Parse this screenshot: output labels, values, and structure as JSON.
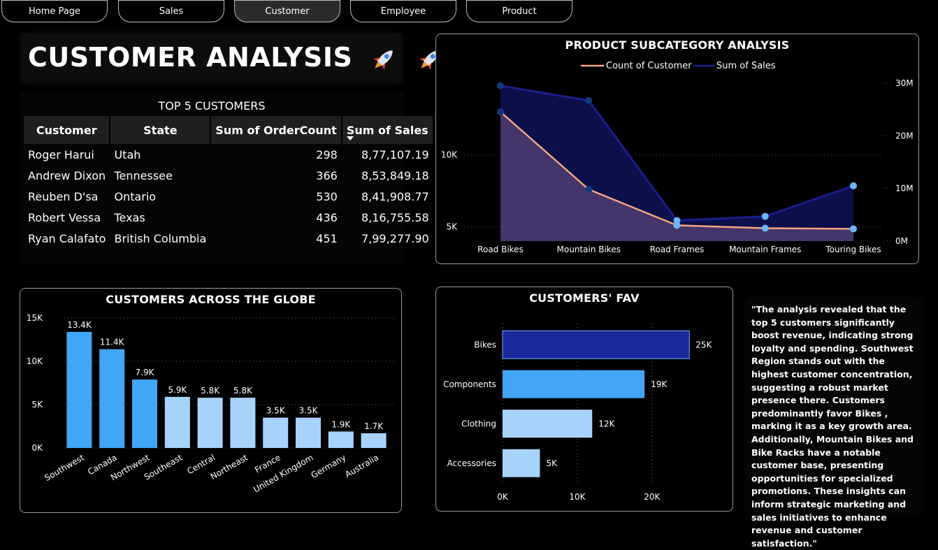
{
  "nav": {
    "items": [
      "Home Page",
      "Sales",
      "Customer",
      "Employee",
      "Product"
    ],
    "active": "Customer"
  },
  "page_title": "CUSTOMER ANALYSIS",
  "top5": {
    "title": "TOP 5 CUSTOMERS",
    "columns": [
      "Customer",
      "State",
      "Sum of OrderCount",
      "Sum of Sales"
    ],
    "rows": [
      [
        "Roger Harui",
        "Utah",
        "298",
        "8,77,107.19"
      ],
      [
        "Andrew Dixon",
        "Tennessee",
        "366",
        "8,53,849.18"
      ],
      [
        "Reuben D'sa",
        "Ontario",
        "530",
        "8,41,908.77"
      ],
      [
        "Robert Vessa",
        "Texas",
        "436",
        "8,16,755.58"
      ],
      [
        "Ryan Calafato",
        "British Columbia",
        "451",
        "7,99,277.90"
      ]
    ]
  },
  "insight_text": "\"The analysis revealed that the top 5 customers significantly boost revenue, indicating strong loyalty and spending. Southwest Region stands out with the highest customer concentration, suggesting a robust market presence there. Customers predominantly favor Bikes , marking it as a key growth area. Additionally, Mountain Bikes and Bike Racks have a notable customer base, presenting opportunities for specialized promotions. These insights can inform strategic marketing and sales initiatives to enhance revenue and customer satisfaction.\"",
  "colors": {
    "navy": "#1a1f8c",
    "navy_fill": "#0b0f4a",
    "peach": "#f4a582",
    "mauve_fill": "#4a3a6e",
    "bar_blue": "#42a5f5",
    "bar_light": "#a7d3fb",
    "bar_navy": "#1a2a9a"
  },
  "chart_data": [
    {
      "id": "subcategory",
      "type": "line",
      "title": "PRODUCT SUBCATEGORY ANALYSIS",
      "categories": [
        "Road Bikes",
        "Mountain Bikes",
        "Road Frames",
        "Mountain Frames",
        "Touring Bikes"
      ],
      "series": [
        {
          "name": "Count of Customer",
          "axis": "left",
          "values": [
            13000,
            7600,
            5100,
            4900,
            4850
          ]
        },
        {
          "name": "Sum of Sales",
          "axis": "right",
          "values": [
            29500000,
            26700000,
            3900000,
            4700000,
            10500000
          ]
        }
      ],
      "left_axis": {
        "ticks": [
          "5K",
          "10K"
        ],
        "tick_values": [
          5000,
          10000
        ],
        "range": [
          4000,
          15000
        ]
      },
      "right_axis": {
        "ticks": [
          "0M",
          "10M",
          "20M",
          "30M"
        ],
        "tick_values": [
          0,
          10000000,
          20000000,
          30000000
        ],
        "range": [
          0,
          30000000
        ]
      },
      "legend": "top-center",
      "grid": true
    },
    {
      "id": "globe",
      "type": "bar",
      "title": "CUSTOMERS ACROSS THE GLOBE",
      "categories": [
        "Southwest",
        "Canada",
        "Northwest",
        "Southeast",
        "Central",
        "Northeast",
        "France",
        "United Kingdom",
        "Germany",
        "Australia"
      ],
      "values": [
        13400,
        11400,
        7900,
        5900,
        5800,
        5800,
        3500,
        3500,
        1900,
        1700
      ],
      "labels": [
        "13.4K",
        "11.4K",
        "7.9K",
        "5.9K",
        "5.8K",
        "5.8K",
        "3.5K",
        "3.5K",
        "1.9K",
        "1.7K"
      ],
      "y_ticks": [
        "0K",
        "5K",
        "10K",
        "15K"
      ],
      "y_tick_values": [
        0,
        5000,
        10000,
        15000
      ],
      "ylim": [
        0,
        15000
      ],
      "grid": true
    },
    {
      "id": "fav",
      "type": "bar",
      "orientation": "horizontal",
      "title": "CUSTOMERS' FAV",
      "categories": [
        "Bikes",
        "Components",
        "Clothing",
        "Accessories"
      ],
      "values": [
        25000,
        19000,
        12000,
        5000
      ],
      "labels": [
        "25K",
        "19K",
        "12K",
        "5K"
      ],
      "x_ticks": [
        "0K",
        "10K",
        "20K"
      ],
      "x_tick_values": [
        0,
        10000,
        20000
      ],
      "xlim": [
        0,
        29000
      ],
      "grid": true
    }
  ]
}
